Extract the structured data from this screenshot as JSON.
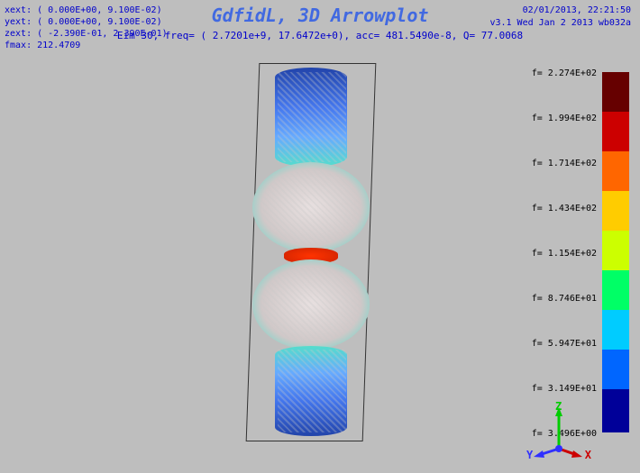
{
  "header": {
    "xext": "xext: (   0.000E+00,  9.100E-02)",
    "yext": "yext: (   0.000E+00,  9.100E-02)",
    "zext": "zext: ( -2.390E-01,  2.390E-01)",
    "fmax": "fmax:   212.4709"
  },
  "title": "GdfidL, 3D Arrowplot",
  "subtitle": "Eim 30, freq= ( 2.7201e+9, 17.6472e+0), acc= 481.5490e-8, Q= 77.0068",
  "meta": {
    "timestamp": "02/01/2013, 22:21:50",
    "version": "v3.1 Wed Jan  2 2013 wb032a"
  },
  "colorbar": {
    "labels": [
      "f=  2.274E+02",
      "f=  1.994E+02",
      "f=  1.714E+02",
      "f=  1.434E+02",
      "f=  1.154E+02",
      "f=  8.746E+01",
      "f=  5.947E+01",
      "f=  3.149E+01",
      "f=  3.496E+00"
    ],
    "segments": [
      {
        "color": "#660000",
        "h": 44
      },
      {
        "color": "#cc0000",
        "h": 44
      },
      {
        "color": "#ff6600",
        "h": 44
      },
      {
        "color": "#ffcc00",
        "h": 44
      },
      {
        "color": "#ccff00",
        "h": 44
      },
      {
        "color": "#00ff66",
        "h": 44
      },
      {
        "color": "#00ccff",
        "h": 44
      },
      {
        "color": "#0066ff",
        "h": 44
      },
      {
        "color": "#000099",
        "h": 48
      }
    ]
  },
  "axes": {
    "z": "Z",
    "y": "Y",
    "x": "X"
  },
  "plot": {
    "top_cyl_color": "#3366dd",
    "bulge_color": "#d8d0d0",
    "bulge_edge": "#55ddcc",
    "mid_color": "#cc3300",
    "bot_cyl_color": "#3366dd"
  }
}
